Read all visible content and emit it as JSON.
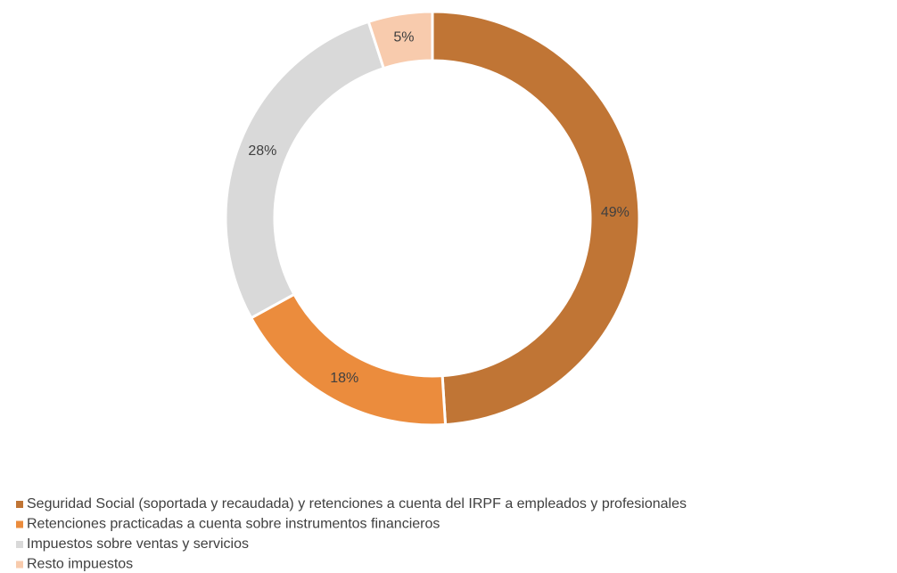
{
  "chart_data": {
    "type": "donut",
    "categories": [
      "Seguridad Social (soportada y recaudada) y retenciones a cuenta del IRPF a empleados y profesionales",
      "Retenciones practicadas a cuenta sobre instrumentos financieros",
      "Impuestos sobre ventas y servicios",
      "Resto impuestos"
    ],
    "values": [
      49,
      18,
      28,
      5
    ],
    "value_labels": [
      "49%",
      "18%",
      "28%",
      "5%"
    ],
    "colors": [
      "#c07535",
      "#eb8c3d",
      "#d9d9d9",
      "#f8cbad"
    ],
    "legend": "bottom-left"
  }
}
